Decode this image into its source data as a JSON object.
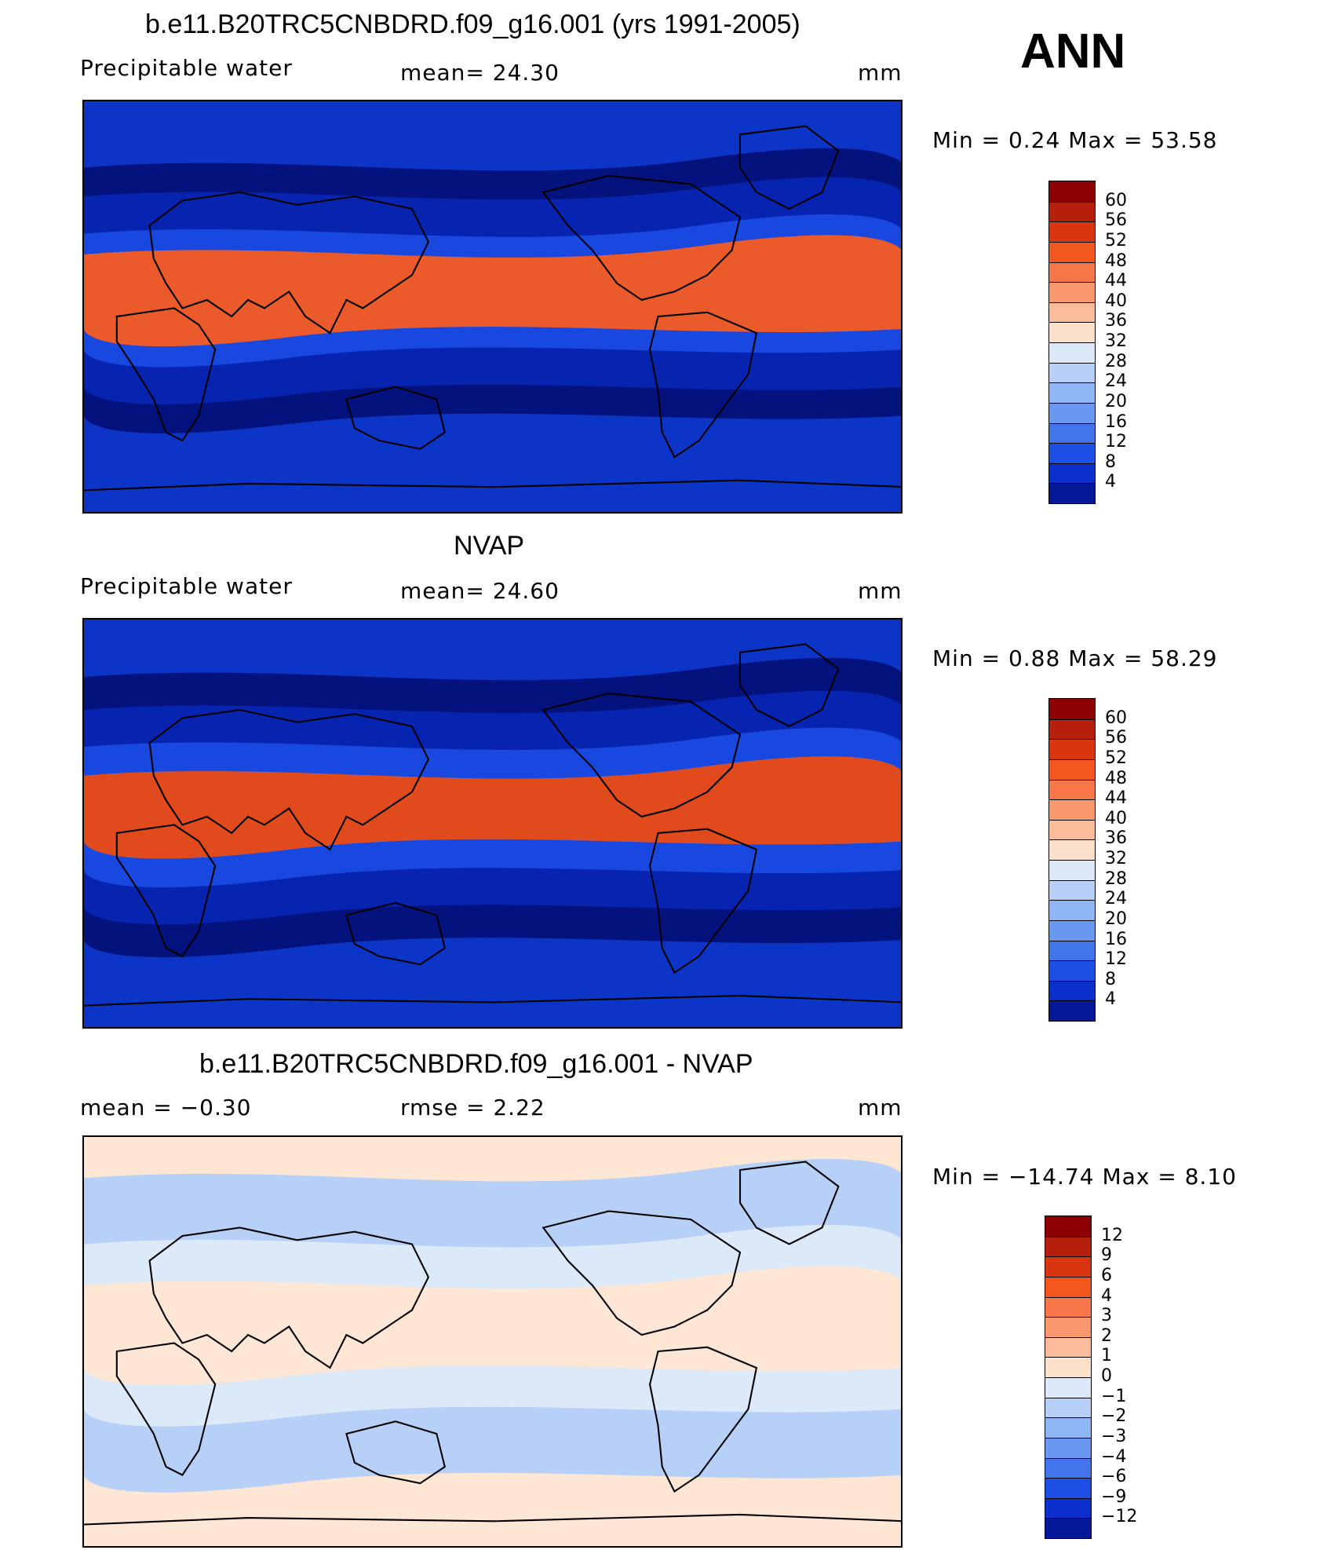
{
  "annotation": "ANN",
  "panels": [
    {
      "title": "b.e11.B20TRC5CNBDRD.f09_g16.001 (yrs 1991-2005)",
      "left_label": "Precipitable  water",
      "center_label": "mean=   24.30",
      "units": "mm",
      "minmax": "Min  =     0.24  Max  =    53.58",
      "colorbar": {
        "levels": [
          "60",
          "56",
          "52",
          "48",
          "44",
          "40",
          "36",
          "32",
          "28",
          "24",
          "20",
          "16",
          "12",
          "8",
          "4"
        ],
        "colors": [
          "#8b0000",
          "#b5200d",
          "#d9360f",
          "#f2571d",
          "#f7774a",
          "#f9986f",
          "#fbbc9c",
          "#fde1cb",
          "#dbe9f8",
          "#b6d0f7",
          "#90b5f5",
          "#6a97f0",
          "#4275ec",
          "#1d4fe4",
          "#0b2fcd",
          "#05189a"
        ]
      },
      "map_fill": "#0c35c8",
      "map_bands": [
        {
          "fill": "#04127e",
          "y": 80
        },
        {
          "fill": "#0624b0",
          "y": 73
        },
        {
          "fill": "#1848e0",
          "y": 64
        },
        {
          "fill": "#5a8ff0",
          "y": 58
        },
        {
          "fill": "#a8c8f5",
          "y": 53
        },
        {
          "fill": "#fbd0b3",
          "y": 48
        },
        {
          "fill": "#f59066",
          "y": 44
        },
        {
          "fill": "#ea5a2a",
          "y": 41
        }
      ]
    },
    {
      "title": "NVAP",
      "left_label": "Precipitable  water",
      "center_label": "mean=   24.60",
      "units": "mm",
      "minmax": "Min  =     0.88  Max  =    58.29",
      "colorbar": {
        "levels": [
          "60",
          "56",
          "52",
          "48",
          "44",
          "40",
          "36",
          "32",
          "28",
          "24",
          "20",
          "16",
          "12",
          "8",
          "4"
        ],
        "colors": [
          "#8b0000",
          "#b5200d",
          "#d9360f",
          "#f2571d",
          "#f7774a",
          "#f9986f",
          "#fbbc9c",
          "#fde1cb",
          "#dbe9f8",
          "#b6d0f7",
          "#90b5f5",
          "#6a97f0",
          "#4275ec",
          "#1d4fe4",
          "#0b2fcd",
          "#05189a"
        ]
      },
      "map_fill": "#0c35c8",
      "map_bands": [
        {
          "fill": "#04127e",
          "y": 82
        },
        {
          "fill": "#0624b0",
          "y": 74
        },
        {
          "fill": "#1848e0",
          "y": 65
        },
        {
          "fill": "#5a8ff0",
          "y": 58
        },
        {
          "fill": "#a8c8f5",
          "y": 54
        },
        {
          "fill": "#fbd0b3",
          "y": 49
        },
        {
          "fill": "#f59066",
          "y": 45
        },
        {
          "fill": "#e04a1d",
          "y": 42
        }
      ]
    },
    {
      "title": "b.e11.B20TRC5CNBDRD.f09_g16.001 - NVAP",
      "left_label": "mean  =    −0.30",
      "center_label": "rmse  =     2.22",
      "units": "mm",
      "minmax": "Min  = −14.74  Max  =     8.10",
      "colorbar": {
        "levels": [
          "12",
          "9",
          "6",
          "4",
          "3",
          "2",
          "1",
          "0",
          "−1",
          "−2",
          "−3",
          "−4",
          "−6",
          "−9",
          "−12"
        ],
        "colors": [
          "#8b0000",
          "#b5200d",
          "#d9360f",
          "#f2571d",
          "#f7774a",
          "#f9986f",
          "#fbbc9c",
          "#fde1cb",
          "#dbe9f8",
          "#b6d0f7",
          "#90b5f5",
          "#6a97f0",
          "#4275ec",
          "#1d4fe4",
          "#0b2fcd",
          "#05189a"
        ]
      },
      "map_fill": "#fde6d4",
      "map_bands": [
        {
          "fill": "#b6d0f7",
          "y": 86
        },
        {
          "fill": "#dbe9f8",
          "y": 70
        },
        {
          "fill": "#fde6d4",
          "y": 40
        }
      ]
    }
  ]
}
